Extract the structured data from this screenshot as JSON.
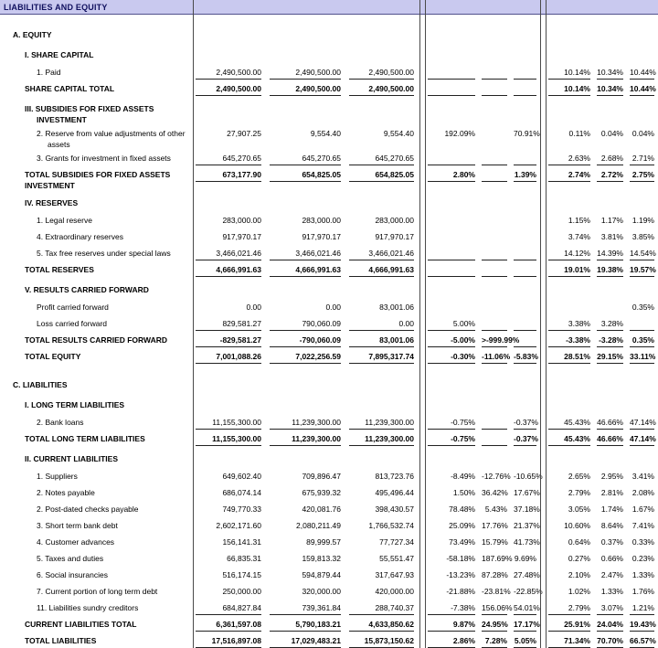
{
  "header": {
    "title": "LIABILITIES AND EQUITY",
    "bg_color": "#c9c9ef",
    "fg_color": "#10105e"
  },
  "table": {
    "rows": [
      {
        "type": "sec1",
        "label": "A. EQUITY"
      },
      {
        "type": "sec2",
        "label": "I. SHARE CAPITAL"
      },
      {
        "type": "item",
        "label": "1. Paid",
        "v": [
          "2,490,500.00",
          "2,490,500.00",
          "2,490,500.00"
        ],
        "p": [
          "",
          "",
          ""
        ],
        "q": [
          "10.14%",
          "10.34%",
          "10.44%"
        ],
        "ul": true
      },
      {
        "type": "total",
        "label": "SHARE CAPITAL TOTAL",
        "v": [
          "2,490,500.00",
          "2,490,500.00",
          "2,490,500.00"
        ],
        "p": [
          "",
          "",
          ""
        ],
        "q": [
          "10.14%",
          "10.34%",
          "10.44%"
        ],
        "ul": true
      },
      {
        "type": "sec2",
        "label": "III. SUBSIDIES FOR FIXED ASSETS INVESTMENT"
      },
      {
        "type": "item",
        "label": "2. Reserve from value adjustments of other assets",
        "v": [
          "27,907.25",
          "9,554.40",
          "9,554.40"
        ],
        "p": [
          "192.09%",
          "",
          "70.91%"
        ],
        "q": [
          "0.11%",
          "0.04%",
          "0.04%"
        ],
        "ul": false
      },
      {
        "type": "item",
        "label": "3. Grants for investment in fixed assets",
        "v": [
          "645,270.65",
          "645,270.65",
          "645,270.65"
        ],
        "p": [
          "",
          "",
          ""
        ],
        "q": [
          "2.63%",
          "2.68%",
          "2.71%"
        ],
        "ul": true
      },
      {
        "type": "total",
        "label": "TOTAL SUBSIDIES FOR FIXED ASSETS INVESTMENT",
        "v": [
          "673,177.90",
          "654,825.05",
          "654,825.05"
        ],
        "p": [
          "2.80%",
          "",
          "1.39%"
        ],
        "q": [
          "2.74%",
          "2.72%",
          "2.75%"
        ],
        "ul": true
      },
      {
        "type": "sec2",
        "label": "IV. RESERVES"
      },
      {
        "type": "item",
        "label": "1. Legal reserve",
        "v": [
          "283,000.00",
          "283,000.00",
          "283,000.00"
        ],
        "p": [
          "",
          "",
          ""
        ],
        "q": [
          "1.15%",
          "1.17%",
          "1.19%"
        ],
        "ul": false
      },
      {
        "type": "item",
        "label": "4. Extraordinary reserves",
        "v": [
          "917,970.17",
          "917,970.17",
          "917,970.17"
        ],
        "p": [
          "",
          "",
          ""
        ],
        "q": [
          "3.74%",
          "3.81%",
          "3.85%"
        ],
        "ul": false
      },
      {
        "type": "item",
        "label": "5. Tax free reserves under special laws",
        "v": [
          "3,466,021.46",
          "3,466,021.46",
          "3,466,021.46"
        ],
        "p": [
          "",
          "",
          ""
        ],
        "q": [
          "14.12%",
          "14.39%",
          "14.54%"
        ],
        "ul": true
      },
      {
        "type": "total",
        "label": "TOTAL RESERVES",
        "v": [
          "4,666,991.63",
          "4,666,991.63",
          "4,666,991.63"
        ],
        "p": [
          "",
          "",
          ""
        ],
        "q": [
          "19.01%",
          "19.38%",
          "19.57%"
        ],
        "ul": true
      },
      {
        "type": "sec2",
        "label": "V. RESULTS CARRIED FORWARD"
      },
      {
        "type": "item",
        "label": "Profit carried forward",
        "v": [
          "0.00",
          "0.00",
          "83,001.06"
        ],
        "p": [
          "",
          "",
          ""
        ],
        "q": [
          "",
          "",
          "0.35%"
        ],
        "ul": false
      },
      {
        "type": "item",
        "label": "Loss carried forward",
        "v": [
          "829,581.27",
          "790,060.09",
          "0.00"
        ],
        "p": [
          "5.00%",
          "",
          ""
        ],
        "q": [
          "3.38%",
          "3.28%",
          ""
        ],
        "ul": true
      },
      {
        "type": "total",
        "label": "TOTAL RESULTS CARRIED FORWARD",
        "v": [
          "-829,581.27",
          "-790,060.09",
          "83,001.06"
        ],
        "p": [
          "-5.00%",
          ">-999.99%",
          ""
        ],
        "q": [
          "-3.38%",
          "-3.28%",
          "0.35%"
        ],
        "ul": true
      },
      {
        "type": "total",
        "label": "TOTAL EQUITY",
        "v": [
          "7,001,088.26",
          "7,022,256.59",
          "7,895,317.74"
        ],
        "p": [
          "-0.30%",
          "-11.06%",
          "-5.83%"
        ],
        "q": [
          "28.51%",
          "29.15%",
          "33.11%"
        ],
        "ul": true
      },
      {
        "type": "sec1",
        "label": "C. LIABILITIES"
      },
      {
        "type": "sec2",
        "label": "I. LONG TERM LIABILITIES"
      },
      {
        "type": "item",
        "label": "2. Bank loans",
        "v": [
          "11,155,300.00",
          "11,239,300.00",
          "11,239,300.00"
        ],
        "p": [
          "-0.75%",
          "",
          "-0.37%"
        ],
        "q": [
          "45.43%",
          "46.66%",
          "47.14%"
        ],
        "ul": true
      },
      {
        "type": "total",
        "label": "TOTAL LONG TERM LIABILITIES",
        "v": [
          "11,155,300.00",
          "11,239,300.00",
          "11,239,300.00"
        ],
        "p": [
          "-0.75%",
          "",
          "-0.37%"
        ],
        "q": [
          "45.43%",
          "46.66%",
          "47.14%"
        ],
        "ul": true
      },
      {
        "type": "sec2",
        "label": "II. CURRENT LIABILITIES"
      },
      {
        "type": "item",
        "label": "1. Suppliers",
        "v": [
          "649,602.40",
          "709,896.47",
          "813,723.76"
        ],
        "p": [
          "-8.49%",
          "-12.76%",
          "-10.65%"
        ],
        "q": [
          "2.65%",
          "2.95%",
          "3.41%"
        ],
        "ul": false
      },
      {
        "type": "item",
        "label": "2. Notes payable",
        "v": [
          "686,074.14",
          "675,939.32",
          "495,496.44"
        ],
        "p": [
          "1.50%",
          "36.42%",
          "17.67%"
        ],
        "q": [
          "2.79%",
          "2.81%",
          "2.08%"
        ],
        "ul": false
      },
      {
        "type": "item",
        "label": "2. Post-dated checks payable",
        "v": [
          "749,770.33",
          "420,081.76",
          "398,430.57"
        ],
        "p": [
          "78.48%",
          "5.43%",
          "37.18%"
        ],
        "q": [
          "3.05%",
          "1.74%",
          "1.67%"
        ],
        "ul": false
      },
      {
        "type": "item",
        "label": "3. Short term bank debt",
        "v": [
          "2,602,171.60",
          "2,080,211.49",
          "1,766,532.74"
        ],
        "p": [
          "25.09%",
          "17.76%",
          "21.37%"
        ],
        "q": [
          "10.60%",
          "8.64%",
          "7.41%"
        ],
        "ul": false
      },
      {
        "type": "item",
        "label": "4. Customer advances",
        "v": [
          "156,141.31",
          "89,999.57",
          "77,727.34"
        ],
        "p": [
          "73.49%",
          "15.79%",
          "41.73%"
        ],
        "q": [
          "0.64%",
          "0.37%",
          "0.33%"
        ],
        "ul": false
      },
      {
        "type": "item",
        "label": "5. Taxes and duties",
        "v": [
          "66,835.31",
          "159,813.32",
          "55,551.47"
        ],
        "p": [
          "-58.18%",
          "187.69%",
          "9.69%"
        ],
        "q": [
          "0.27%",
          "0.66%",
          "0.23%"
        ],
        "ul": false
      },
      {
        "type": "item",
        "label": "6. Social insurancies",
        "v": [
          "516,174.15",
          "594,879.44",
          "317,647.93"
        ],
        "p": [
          "-13.23%",
          "87.28%",
          "27.48%"
        ],
        "q": [
          "2.10%",
          "2.47%",
          "1.33%"
        ],
        "ul": false
      },
      {
        "type": "item",
        "label": "7. Current portion of long term debt",
        "v": [
          "250,000.00",
          "320,000.00",
          "420,000.00"
        ],
        "p": [
          "-21.88%",
          "-23.81%",
          "-22.85%"
        ],
        "q": [
          "1.02%",
          "1.33%",
          "1.76%"
        ],
        "ul": false
      },
      {
        "type": "item",
        "label": "11. Liabilities sundry creditors",
        "v": [
          "684,827.84",
          "739,361.84",
          "288,740.37"
        ],
        "p": [
          "-7.38%",
          "156.06%",
          "54.01%"
        ],
        "q": [
          "2.79%",
          "3.07%",
          "1.21%"
        ],
        "ul": true
      },
      {
        "type": "total",
        "label": "CURRENT LIABILITIES TOTAL",
        "v": [
          "6,361,597.08",
          "5,790,183.21",
          "4,633,850.62"
        ],
        "p": [
          "9.87%",
          "24.95%",
          "17.17%"
        ],
        "q": [
          "25.91%",
          "24.04%",
          "19.43%"
        ],
        "ul": true
      },
      {
        "type": "total",
        "label": "TOTAL LIABILITIES",
        "v": [
          "17,516,897.08",
          "17,029,483.21",
          "15,873,150.62"
        ],
        "p": [
          "2.86%",
          "7.28%",
          "5.05%"
        ],
        "q": [
          "71.34%",
          "70.70%",
          "66.57%"
        ],
        "ul": true
      }
    ]
  }
}
